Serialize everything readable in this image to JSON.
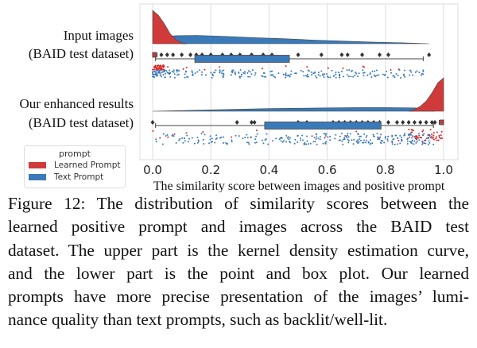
{
  "chart_data": {
    "type": "raincloud",
    "xlabel": "The similarity score between images and positive prompt",
    "xlim": [
      0.0,
      1.0
    ],
    "xticks": [
      "0.0",
      "0.2",
      "0.4",
      "0.6",
      "0.8",
      "1.0"
    ],
    "grid": "vertical",
    "categories": [
      {
        "line1": "Input images",
        "line2": "(BAID test dataset)"
      },
      {
        "line1": "Our enhanced results",
        "line2": "(BAID test dataset)"
      }
    ],
    "legend": {
      "title": "prompt",
      "position": "bottom-left",
      "entries": [
        "Learned Prompt",
        "Text Prompt"
      ]
    },
    "series": [
      {
        "name": "Learned Prompt",
        "color": "#d03a3a",
        "groups": [
          {
            "box": {
              "whisker_low": 0.0,
              "q1": 0.0,
              "median": 0.005,
              "q3": 0.012,
              "whisker_high": 0.015
            },
            "kde": [
              [
                0.0,
                1.0
              ],
              [
                0.02,
                0.85
              ],
              [
                0.04,
                0.6
              ],
              [
                0.06,
                0.3
              ],
              [
                0.08,
                0.12
              ],
              [
                0.1,
                0.03
              ],
              [
                0.12,
                0.0
              ]
            ],
            "fliers": [
              0.03,
              0.05,
              0.07,
              0.1,
              0.13,
              0.15,
              0.17,
              0.2,
              0.24,
              0.27,
              0.3,
              0.34,
              0.38,
              0.41,
              0.5,
              0.58,
              0.65,
              0.67,
              0.72,
              0.78,
              0.81,
              0.95
            ]
          },
          {
            "box": {
              "whisker_low": 0.985,
              "q1": 0.988,
              "median": 0.995,
              "q3": 1.0,
              "whisker_high": 1.0
            },
            "kde": [
              [
                0.88,
                0.0
              ],
              [
                0.9,
                0.05
              ],
              [
                0.92,
                0.15
              ],
              [
                0.94,
                0.3
              ],
              [
                0.96,
                0.55
              ],
              [
                0.98,
                0.85
              ],
              [
                1.0,
                1.0
              ]
            ],
            "fliers": [
              0.0,
              0.29,
              0.34,
              0.35,
              0.5,
              0.53,
              0.62,
              0.64,
              0.66,
              0.68,
              0.7,
              0.72,
              0.74,
              0.76,
              0.78,
              0.81,
              0.84,
              0.86,
              0.88,
              0.9,
              0.92,
              0.94,
              0.96,
              0.97
            ]
          }
        ]
      },
      {
        "name": "Text Prompt",
        "color": "#3a7ab8",
        "groups": [
          {
            "box": {
              "whisker_low": 0.01,
              "q1": 0.145,
              "median": 0.28,
              "q3": 0.47,
              "whisker_high": 0.93
            },
            "kde": [
              [
                0.01,
                0.0
              ],
              [
                0.02,
                0.2
              ],
              [
                0.08,
                0.24
              ],
              [
                0.15,
                0.25
              ],
              [
                0.25,
                0.22
              ],
              [
                0.35,
                0.18
              ],
              [
                0.45,
                0.15
              ],
              [
                0.55,
                0.11
              ],
              [
                0.65,
                0.08
              ],
              [
                0.75,
                0.05
              ],
              [
                0.85,
                0.03
              ],
              [
                0.95,
                0.0
              ]
            ]
          },
          {
            "box": {
              "whisker_low": 0.01,
              "q1": 0.385,
              "median": 0.6,
              "q3": 0.785,
              "whisker_high": 0.965
            },
            "kde": [
              [
                0.0,
                0.0
              ],
              [
                0.1,
                0.02
              ],
              [
                0.2,
                0.04
              ],
              [
                0.3,
                0.06
              ],
              [
                0.4,
                0.08
              ],
              [
                0.5,
                0.09
              ],
              [
                0.6,
                0.1
              ],
              [
                0.7,
                0.11
              ],
              [
                0.8,
                0.11
              ],
              [
                0.9,
                0.1
              ],
              [
                0.95,
                0.06
              ],
              [
                0.97,
                0.0
              ]
            ]
          }
        ]
      }
    ]
  },
  "caption": {
    "lines": [
      "Figure 12: The distribution of similarity scores between the",
      "learned positive prompt and images across the BAID test",
      "dataset. The upper part is the kernel density estimation curve,",
      "and the lower part is the point and box plot. Our learned",
      "prompts have more precise presentation of the images’ lumi-",
      "nance quality than text prompts, such as backlit/well-lit."
    ]
  }
}
